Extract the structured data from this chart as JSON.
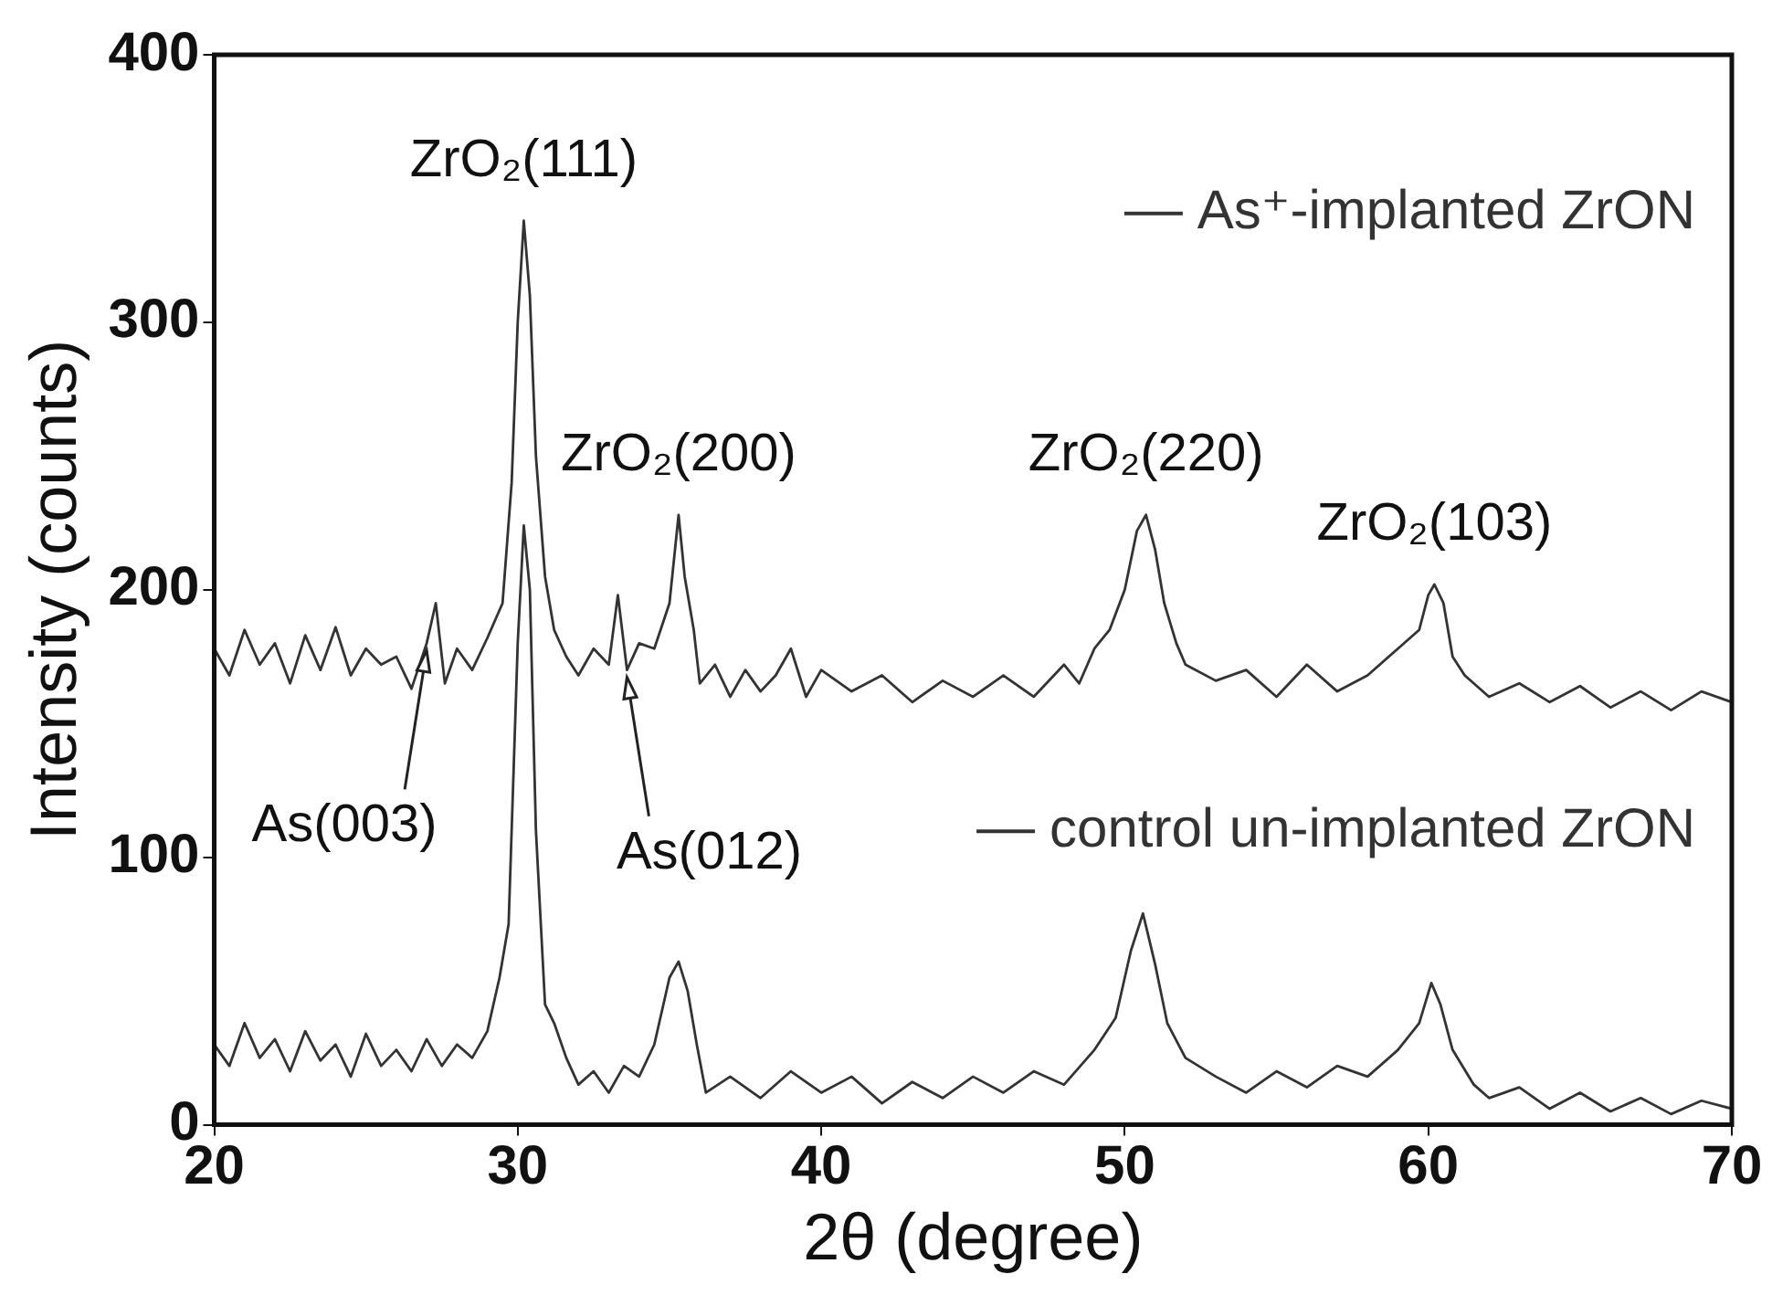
{
  "chart_data": {
    "type": "line",
    "xlabel": "2θ (degree)",
    "ylabel": "Intensity (counts)",
    "xlim": [
      20,
      70
    ],
    "xticks": [
      20,
      30,
      40,
      50,
      60,
      70
    ],
    "ylim": [
      0,
      400
    ],
    "yticks": [
      0,
      100,
      200,
      300,
      400
    ],
    "marker": "none",
    "line_style": "solid",
    "legend": "right",
    "series": [
      {
        "name": "As⁺-implanted ZrON",
        "color": "#333333",
        "x": [
          20,
          20.5,
          21,
          21.5,
          22,
          22.5,
          23,
          23.5,
          24,
          24.5,
          25,
          25.5,
          26,
          26.5,
          27,
          27.3,
          27.6,
          28,
          28.5,
          29,
          29.5,
          29.8,
          30,
          30.2,
          30.4,
          30.6,
          30.9,
          31.2,
          31.6,
          32,
          32.5,
          33,
          33.3,
          33.6,
          34,
          34.5,
          35,
          35.3,
          35.5,
          35.8,
          36,
          36.5,
          37,
          37.5,
          38,
          38.5,
          39,
          39.5,
          40,
          41,
          42,
          43,
          44,
          45,
          46,
          47,
          48,
          48.5,
          49,
          49.5,
          50,
          50.4,
          50.7,
          51,
          51.3,
          51.7,
          52,
          53,
          54,
          55,
          56,
          57,
          58,
          59,
          59.7,
          60,
          60.2,
          60.5,
          60.8,
          61.2,
          62,
          63,
          64,
          65,
          66,
          67,
          68,
          69,
          70
        ],
        "values": [
          178,
          168,
          185,
          172,
          180,
          165,
          183,
          170,
          186,
          168,
          178,
          172,
          175,
          163,
          180,
          195,
          165,
          178,
          170,
          182,
          195,
          240,
          300,
          338,
          310,
          250,
          205,
          185,
          175,
          168,
          178,
          172,
          198,
          170,
          180,
          178,
          195,
          228,
          205,
          185,
          165,
          172,
          160,
          170,
          162,
          168,
          178,
          160,
          170,
          162,
          168,
          158,
          166,
          160,
          168,
          160,
          172,
          165,
          178,
          185,
          200,
          222,
          228,
          215,
          195,
          180,
          172,
          166,
          170,
          160,
          172,
          162,
          168,
          178,
          185,
          198,
          202,
          195,
          175,
          168,
          160,
          165,
          158,
          164,
          156,
          162,
          155,
          162,
          158
        ]
      },
      {
        "name": "control un-implanted ZrON",
        "color": "#333333",
        "x": [
          20,
          20.5,
          21,
          21.5,
          22,
          22.5,
          23,
          23.5,
          24,
          24.5,
          25,
          25.5,
          26,
          26.5,
          27,
          27.5,
          28,
          28.5,
          29,
          29.4,
          29.7,
          30,
          30.2,
          30.4,
          30.6,
          30.9,
          31.2,
          31.6,
          32,
          32.5,
          33,
          33.5,
          34,
          34.5,
          35,
          35.3,
          35.6,
          35.9,
          36.2,
          37,
          38,
          39,
          40,
          41,
          42,
          43,
          44,
          45,
          46,
          47,
          48,
          49,
          49.7,
          50.2,
          50.6,
          51,
          51.4,
          52,
          53,
          54,
          55,
          56,
          57,
          58,
          59,
          59.7,
          60.1,
          60.4,
          60.8,
          61.5,
          62,
          63,
          64,
          65,
          66,
          67,
          68,
          69,
          70
        ],
        "values": [
          30,
          22,
          38,
          25,
          32,
          20,
          35,
          24,
          30,
          18,
          34,
          22,
          28,
          20,
          32,
          22,
          30,
          25,
          35,
          55,
          75,
          180,
          224,
          200,
          110,
          45,
          38,
          25,
          15,
          20,
          12,
          22,
          18,
          30,
          55,
          61,
          50,
          30,
          12,
          18,
          10,
          20,
          12,
          18,
          8,
          16,
          10,
          18,
          12,
          20,
          15,
          28,
          40,
          65,
          79,
          60,
          38,
          25,
          18,
          12,
          20,
          14,
          22,
          18,
          28,
          38,
          53,
          45,
          28,
          15,
          10,
          14,
          6,
          12,
          5,
          10,
          4,
          9,
          6
        ]
      }
    ],
    "annotations": [
      {
        "text": "ZrO₂(111)",
        "x": 30.2,
        "y": 338
      },
      {
        "text": "ZrO₂(200)",
        "x": 35.3,
        "y": 228
      },
      {
        "text": "ZrO₂(220)",
        "x": 50.7,
        "y": 228
      },
      {
        "text": "ZrO₂(103)",
        "x": 60.2,
        "y": 202
      },
      {
        "text": "As(003)",
        "x": 27,
        "y": 180
      },
      {
        "text": "As(012)",
        "x": 33.6,
        "y": 170
      }
    ]
  }
}
